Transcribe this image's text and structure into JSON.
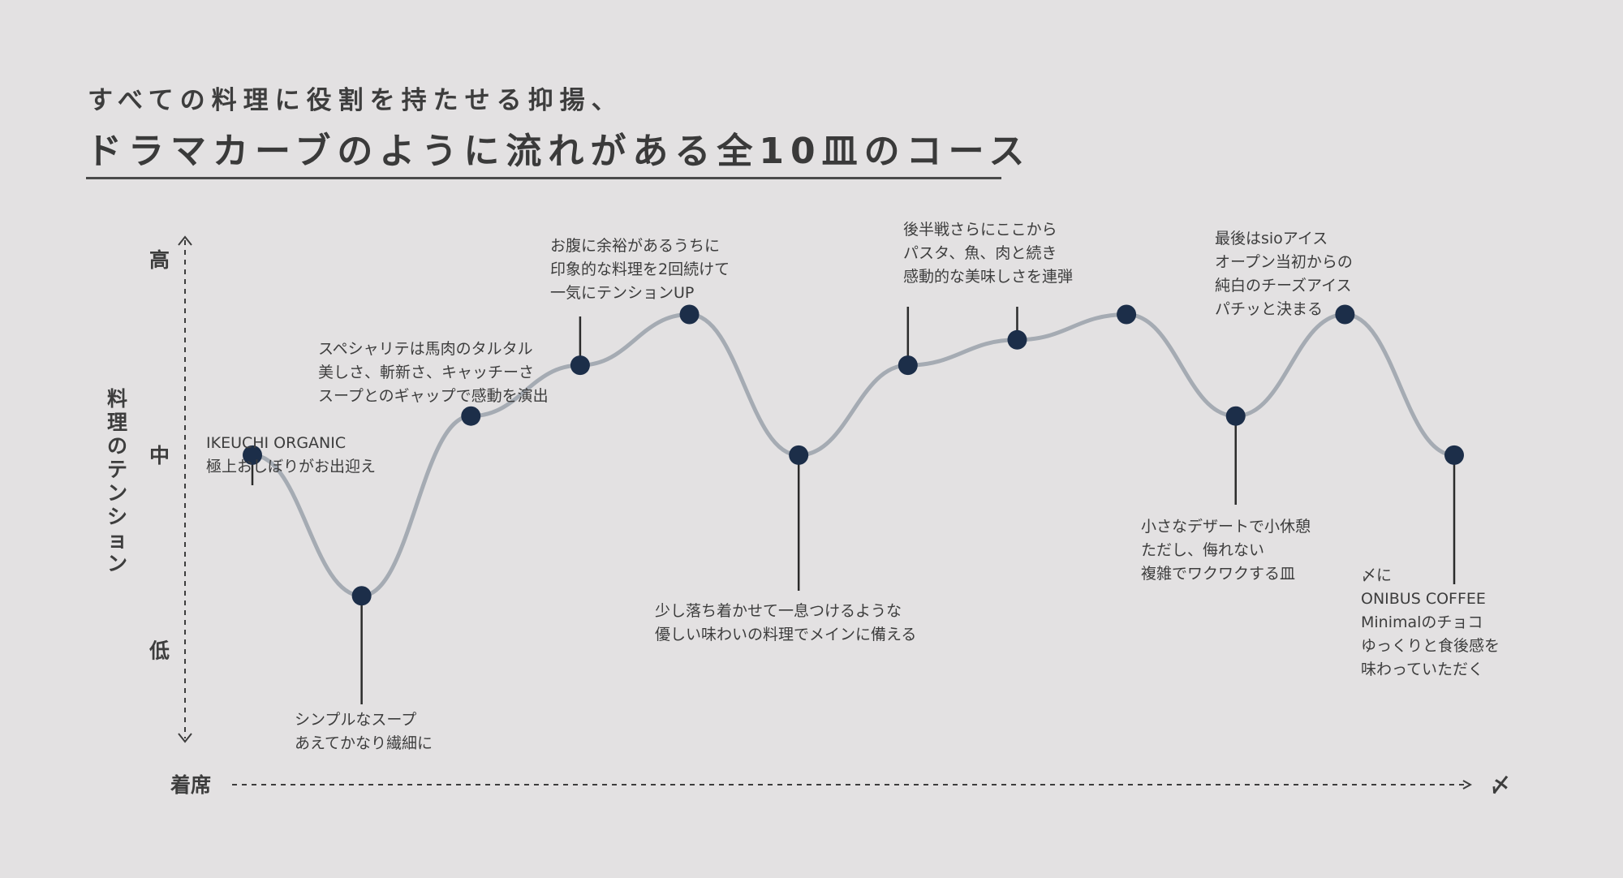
{
  "header": {
    "subtitle": "すべての料理に役割を持たせる抑揚、",
    "title": "ドラマカーブのように流れがある全10皿のコース"
  },
  "chart_data": {
    "type": "line",
    "title": "ドラマカーブのように流れがある全10皿のコース",
    "xlabel": "",
    "ylabel": "料理のテンション",
    "x_start_label": "着席",
    "x_end_label": "〆",
    "y_ticks": [
      {
        "label": "高",
        "value": 3
      },
      {
        "label": "中",
        "value": 2
      },
      {
        "label": "低",
        "value": 1
      }
    ],
    "ylim": [
      0.55,
      3.1
    ],
    "series": [
      {
        "points": [
          {
            "course": 1,
            "value": 2.0,
            "label_pos": "above",
            "annotation": [
              "IKEUCHI ORGANIC",
              "極上おしぼりがお出迎え"
            ]
          },
          {
            "course": 2,
            "value": 1.28,
            "label_pos": "below",
            "annotation": [
              "シンプルなスープ",
              "あえてかなり繊細に"
            ]
          },
          {
            "course": 3,
            "value": 2.2,
            "label_pos": "above",
            "annotation": [
              "スペシャリテは馬肉のタルタル",
              "美しさ、斬新さ、キャッチーさ",
              "スープとのギャップで感動を演出"
            ]
          },
          {
            "course": 4,
            "value": 2.46,
            "label_pos": "above",
            "annotation": [
              "お腹に余裕があるうちに",
              "印象的な料理を2回続けて",
              "一気にテンションUP"
            ]
          },
          {
            "course": 5,
            "value": 2.72,
            "label_pos": "above",
            "annotation": []
          },
          {
            "course": 6,
            "value": 2.0,
            "label_pos": "below",
            "annotation": [
              "少し落ち着かせて一息つけるような",
              "優しい味わいの料理でメインに備える"
            ]
          },
          {
            "course": 7,
            "value": 2.46,
            "label_pos": "above",
            "annotation": [
              "後半戦さらにここから",
              "パスタ、魚、肉と続き",
              "感動的な美味しさを連弾"
            ]
          },
          {
            "course": 8,
            "value": 2.59,
            "label_pos": "above",
            "annotation": []
          },
          {
            "course": 9,
            "value": 2.72,
            "label_pos": "above",
            "annotation": []
          },
          {
            "course": 10,
            "value": 2.2,
            "label_pos": "below",
            "annotation": [
              "小さなデザートで小休憩",
              "ただし、侮れない",
              "複雑でワクワクする皿"
            ]
          },
          {
            "course": 11,
            "value": 2.72,
            "label_pos": "above",
            "annotation": [
              "最後はsioアイス",
              "オープン当初からの",
              "純白のチーズアイス",
              "パチッと決まる"
            ]
          },
          {
            "course": 12,
            "value": 2.0,
            "label_pos": "below",
            "annotation": [
              "〆に",
              "ONIBUS COFFEE",
              "Minimalのチョコ",
              "ゆっくりと食後感を",
              "味わっていただく"
            ]
          }
        ]
      }
    ],
    "colors": {
      "line": "#a5abb3",
      "point": "#1c2e49",
      "stem": "#2b2b2b",
      "axis": "#3d3d3d"
    },
    "grid": false,
    "legend": "none"
  }
}
